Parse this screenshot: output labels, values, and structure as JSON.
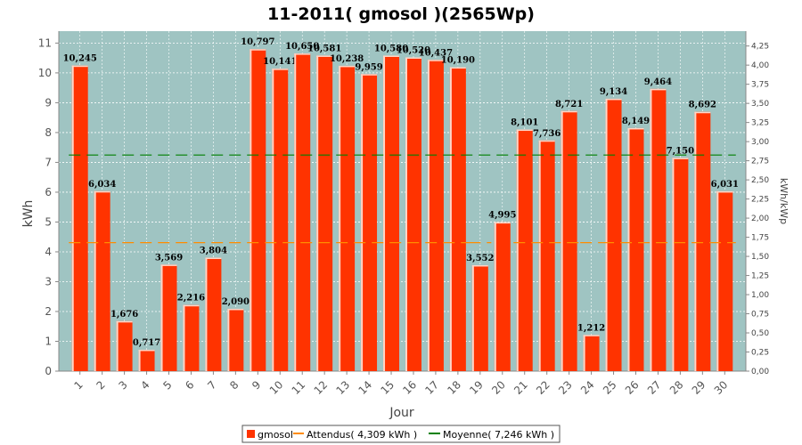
{
  "chart_data": {
    "type": "bar",
    "title": "11-2011( gmosol )(2565Wp)",
    "xlabel": "Jour",
    "ylabel": "kWh",
    "ylabel_right": "kWh/kWp",
    "ylim": [
      0,
      11.4
    ],
    "ylim_right": [
      0,
      4.444
    ],
    "yticks": [
      "0",
      "1",
      "2",
      "3",
      "4",
      "5",
      "6",
      "7",
      "8",
      "9",
      "10",
      "11"
    ],
    "yticks_right": [
      "0,00",
      "0,25",
      "0,50",
      "0,75",
      "1,00",
      "1,25",
      "1,50",
      "1,75",
      "2,00",
      "2,25",
      "2,50",
      "2,75",
      "3,00",
      "3,25",
      "3,50",
      "3,75",
      "4,00",
      "4,25"
    ],
    "categories": [
      "1",
      "2",
      "3",
      "4",
      "5",
      "6",
      "7",
      "8",
      "9",
      "10",
      "11",
      "12",
      "13",
      "14",
      "15",
      "16",
      "17",
      "18",
      "19",
      "20",
      "21",
      "22",
      "23",
      "24",
      "25",
      "26",
      "27",
      "28",
      "29",
      "30"
    ],
    "series": [
      {
        "name": "gmosol",
        "values": [
          10.245,
          6.034,
          1.676,
          0.717,
          3.569,
          2.216,
          3.804,
          2.09,
          10.797,
          10.141,
          10.65,
          10.581,
          10.238,
          9.959,
          10.58,
          10.52,
          10.437,
          10.19,
          3.552,
          4.995,
          8.101,
          7.736,
          8.721,
          1.212,
          9.134,
          8.149,
          9.464,
          7.15,
          8.692,
          6.031
        ],
        "labels": [
          "10,245",
          "6,034",
          "1,676",
          "0,717",
          "3,569",
          "2,216",
          "3,804",
          "2,090",
          "10,797",
          "10,141",
          "10,650",
          "10,581",
          "10,238",
          "9,959",
          "10,580",
          "10,520",
          "10,437",
          "10,190",
          "3,552",
          "4,995",
          "8,101",
          "7,736",
          "8,721",
          "1,212",
          "9,134",
          "8,149",
          "9,464",
          "7,150",
          "8,692",
          "6,031"
        ]
      }
    ],
    "reference_lines": [
      {
        "name": "Attendus( 4,309 kWh )",
        "value": 4.309,
        "segments": [
          [
            1,
            18
          ],
          [
            19,
            19
          ],
          [
            21,
            23
          ],
          [
            24,
            24
          ],
          [
            25,
            30
          ]
        ]
      },
      {
        "name": "Moyenne( 7,246 kWh )",
        "value": 7.246,
        "segments": [
          [
            1,
            30
          ]
        ]
      }
    ],
    "grid": true,
    "legend_position": "bottom"
  },
  "colors": {
    "plot_bg": "#9fc4c2",
    "bar": "#ff3300",
    "bar_highlight": "#ffd6c8",
    "attendus": "#ff8c00",
    "moyenne": "#008000",
    "grid": "#ffffff"
  }
}
